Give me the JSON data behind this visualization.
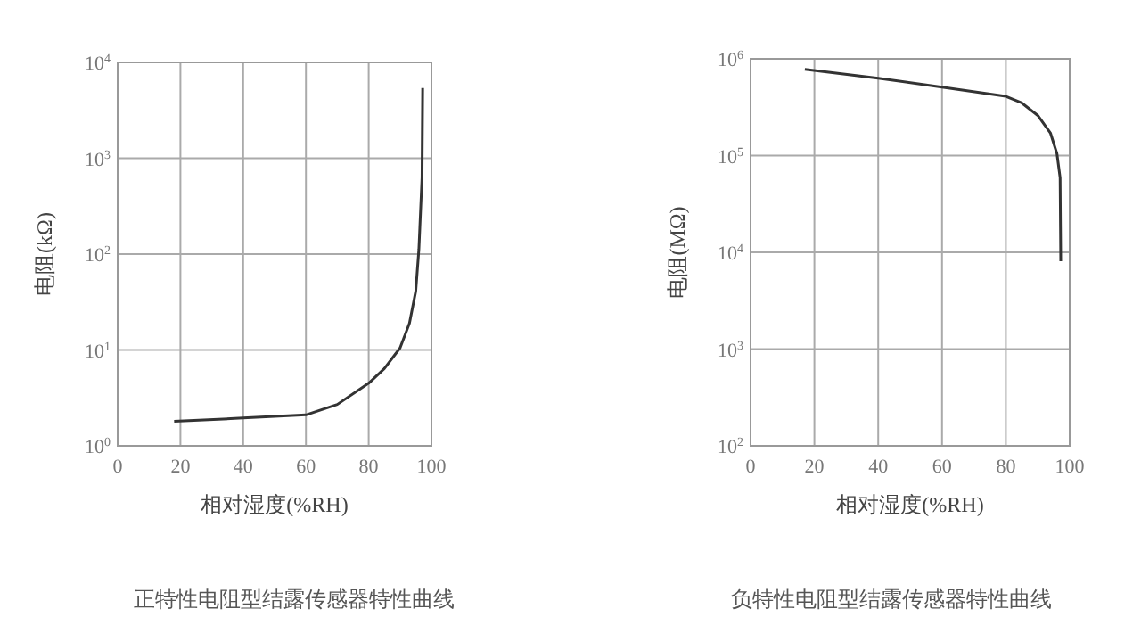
{
  "chart_data": [
    {
      "type": "line",
      "xlabel": "相对湿度(%RH)",
      "ylabel": "电阻(kΩ)",
      "log": "y",
      "grid": true,
      "annotations": [
        "正特性电阻型结露传感器特性曲线"
      ],
      "xlim": [
        0,
        100
      ],
      "xticks": [
        0,
        20,
        40,
        60,
        80,
        100
      ],
      "ylim": [
        1,
        10000
      ],
      "yticks": [
        {
          "value": 1,
          "label": "10$^{0}$"
        },
        {
          "value": 10,
          "label": "10$^{1}$"
        },
        {
          "value": 100,
          "label": "10$^{2}$"
        },
        {
          "value": 1000,
          "label": "10$^{3}$"
        },
        {
          "value": 10000,
          "label": "10$^{4}$"
        }
      ],
      "series": [
        {
          "color": "#333333",
          "x": [
            18,
            40,
            60,
            70,
            80,
            85,
            90,
            93,
            95,
            96,
            97,
            97.2
          ],
          "values": [
            1.8,
            1.95,
            2.1,
            2.7,
            4.5,
            6.4,
            10.5,
            19,
            41,
            112,
            630,
            5400
          ]
        }
      ]
    },
    {
      "type": "line",
      "xlabel": "相对湿度(%RH)",
      "ylabel": "电阻(MΩ)",
      "log": "y",
      "grid": true,
      "annotations": [
        "负特性电阻型结露传感器特性曲线"
      ],
      "xlim": [
        0,
        100
      ],
      "xticks": [
        0,
        20,
        40,
        60,
        80,
        100
      ],
      "ylim": [
        100,
        1000000
      ],
      "yticks": [
        {
          "value": 100,
          "label": "10$^{2}$"
        },
        {
          "value": 1000,
          "label": "10$^{3}$"
        },
        {
          "value": 10000,
          "label": "10$^{4}$"
        },
        {
          "value": 100000,
          "label": "10$^{5}$"
        },
        {
          "value": 1000000,
          "label": "10$^{6}$"
        }
      ],
      "series": [
        {
          "color": "#333333",
          "x": [
            17,
            40,
            60,
            80,
            85,
            90,
            94,
            96,
            97,
            97.2
          ],
          "values": [
            780000,
            630000,
            510000,
            410000,
            350000,
            260000,
            170000,
            105000,
            59000,
            8100
          ]
        }
      ]
    }
  ]
}
